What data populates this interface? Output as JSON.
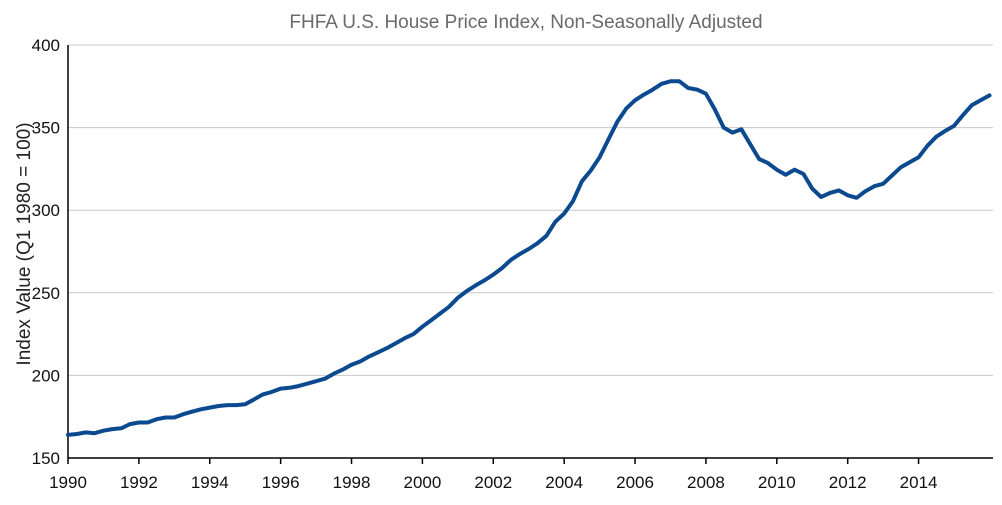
{
  "chart_data": {
    "type": "line",
    "title": "FHFA U.S. House Price Index, Non-Seasonally Adjusted",
    "ylabel": "Index Value (Q1 1980 = 100)",
    "xlabel": "",
    "xlim": [
      1990,
      2016.1
    ],
    "ylim": [
      150,
      400
    ],
    "yticks": [
      150,
      200,
      250,
      300,
      350,
      400
    ],
    "ytick_labels": [
      "150",
      "200",
      "250",
      "300",
      "350",
      "400"
    ],
    "xticks": [
      1990,
      1992,
      1994,
      1996,
      1998,
      2000,
      2002,
      2004,
      2006,
      2008,
      2010,
      2012,
      2014
    ],
    "xtick_labels": [
      "1990",
      "1992",
      "1994",
      "1996",
      "1998",
      "2000",
      "2002",
      "2004",
      "2006",
      "2008",
      "2010",
      "2012",
      "2014"
    ],
    "grid": true,
    "color": "#0b4a8f",
    "series": [
      {
        "x": [
          1990.0,
          1990.25,
          1990.5,
          1990.75,
          1991.0,
          1991.25,
          1991.5,
          1991.75,
          1992.0,
          1992.25,
          1992.5,
          1992.75,
          1993.0,
          1993.25,
          1993.5,
          1993.75,
          1994.0,
          1994.25,
          1994.5,
          1994.75,
          1995.0,
          1995.25,
          1995.5,
          1995.75,
          1996.0,
          1996.25,
          1996.5,
          1996.75,
          1997.0,
          1997.25,
          1997.5,
          1997.75,
          1998.0,
          1998.25,
          1998.5,
          1998.75,
          1999.0,
          1999.25,
          1999.5,
          1999.75,
          2000.0,
          2000.25,
          2000.5,
          2000.75,
          2001.0,
          2001.25,
          2001.5,
          2001.75,
          2002.0,
          2002.25,
          2002.5,
          2002.75,
          2003.0,
          2003.25,
          2003.5,
          2003.75,
          2004.0,
          2004.25,
          2004.5,
          2004.75,
          2005.0,
          2005.25,
          2005.5,
          2005.75,
          2006.0,
          2006.25,
          2006.5,
          2006.75,
          2007.0,
          2007.25,
          2007.5,
          2007.75,
          2008.0,
          2008.25,
          2008.5,
          2008.75,
          2009.0,
          2009.25,
          2009.5,
          2009.75,
          2010.0,
          2010.25,
          2010.5,
          2010.75,
          2011.0,
          2011.25,
          2011.5,
          2011.75,
          2012.0,
          2012.25,
          2012.5,
          2012.75,
          2013.0,
          2013.25,
          2013.5,
          2013.75,
          2014.0,
          2014.25,
          2014.5,
          2014.75,
          2015.0,
          2015.25,
          2015.5,
          2015.75,
          2016.0
        ],
        "y": [
          164,
          164.5,
          165.5,
          165,
          166.5,
          167.5,
          168,
          170.5,
          171.5,
          171.5,
          173.5,
          174.5,
          174.5,
          176.5,
          178,
          179.5,
          180.5,
          181.5,
          182,
          182,
          182.5,
          185.5,
          188.5,
          190,
          192,
          192.5,
          193.5,
          195,
          196.5,
          198,
          201,
          203.5,
          206.5,
          208.5,
          211.5,
          214,
          216.5,
          219.5,
          222.5,
          225,
          229.5,
          233.5,
          237.5,
          241.5,
          247,
          251,
          254.5,
          257.5,
          261,
          265,
          270,
          273.5,
          276.5,
          280,
          284.5,
          293,
          298,
          305.5,
          317.5,
          324,
          332,
          343,
          353.5,
          361.5,
          366.5,
          370,
          373,
          376.5,
          378,
          378,
          374,
          373,
          370.5,
          361,
          350,
          347,
          349,
          340,
          331,
          328.5,
          324.5,
          321.5,
          324.5,
          322,
          313,
          308,
          310.5,
          312,
          309,
          307.5,
          311.5,
          314.5,
          316,
          321,
          326,
          329,
          332,
          339,
          344.5,
          348,
          351,
          357.5,
          363.5,
          366.5,
          369.5
        ]
      }
    ]
  }
}
